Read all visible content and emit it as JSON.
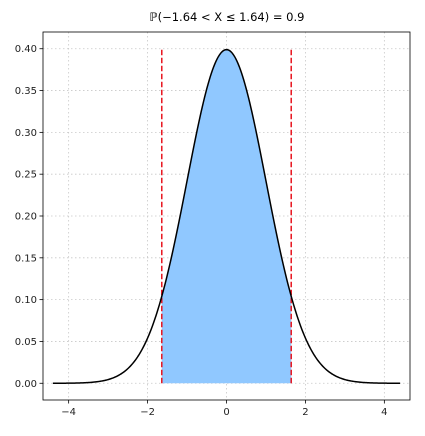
{
  "chart_data": {
    "type": "area",
    "title": "ℙ(−1.64 < X ≤ 1.64) = 0.9",
    "xlabel": "",
    "ylabel": "",
    "xlim": [
      -4.65,
      4.65
    ],
    "ylim": [
      -0.02,
      0.42
    ],
    "x_ticks": [
      -4,
      -2,
      0,
      2,
      4
    ],
    "x_tick_labels": [
      "−4",
      "−2",
      "0",
      "2",
      "4"
    ],
    "y_ticks": [
      0.0,
      0.05,
      0.1,
      0.15,
      0.2,
      0.25,
      0.3,
      0.35,
      0.4
    ],
    "y_tick_labels": [
      "0.00",
      "0.05",
      "0.10",
      "0.15",
      "0.20",
      "0.25",
      "0.30",
      "0.35",
      "0.40"
    ],
    "grid": true,
    "legend": "none",
    "curve": {
      "name": "",
      "distribution": "standard-normal-pdf",
      "mean": 0,
      "sd": 1,
      "x_range": [
        -4.4,
        4.4
      ],
      "color": "#000000"
    },
    "shaded_region": {
      "x_range": [
        -1.64,
        1.64
      ],
      "probability": 0.9,
      "color": "#90c8ff"
    },
    "vertical_lines": [
      {
        "x": -1.64,
        "y_range": [
          0,
          0.4
        ],
        "color": "#e8141e",
        "style": "dashed"
      },
      {
        "x": 1.64,
        "y_range": [
          0,
          0.4
        ],
        "color": "#e8141e",
        "style": "dashed"
      }
    ]
  }
}
